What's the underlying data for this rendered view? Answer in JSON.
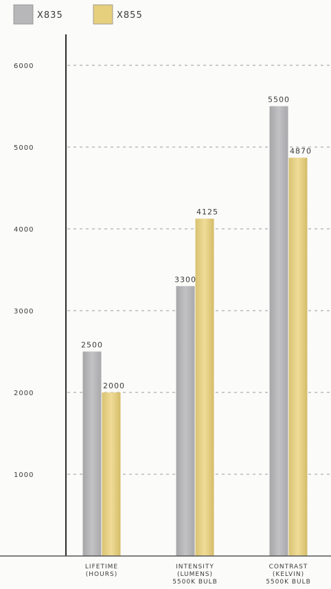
{
  "chart_data": {
    "type": "bar",
    "title": "",
    "xlabel": "",
    "ylabel": "",
    "ylim": [
      0,
      6000
    ],
    "yticks": [
      1000,
      2000,
      3000,
      4000,
      5000,
      6000
    ],
    "ytick_labels": [
      "1000",
      "2000",
      "3000",
      "4000",
      "5000",
      "6000"
    ],
    "grid": true,
    "legend_position": "top-left",
    "categories": [
      [
        "LIFETIME",
        "(HOURS)"
      ],
      [
        "INTENSITY",
        "(LUMENS)",
        "5500K BULB"
      ],
      [
        "CONTRAST",
        "(KELVIN)",
        "5500K BULB"
      ]
    ],
    "series": [
      {
        "name": "X835",
        "color": "#b4b4b6",
        "values": [
          2500,
          3300,
          5500
        ],
        "labels": [
          "2500",
          "3300",
          "5500"
        ]
      },
      {
        "name": "X855",
        "color": "#e3cd82",
        "values": [
          2000,
          4125,
          4870
        ],
        "labels": [
          "2000",
          "4125",
          "4870"
        ]
      }
    ]
  }
}
